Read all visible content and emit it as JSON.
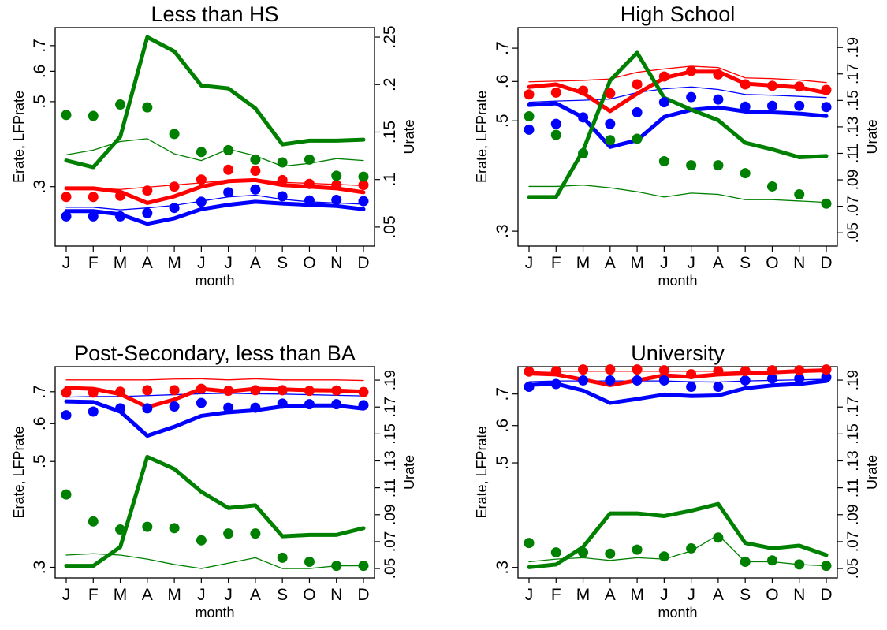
{
  "months": [
    "J",
    "F",
    "M",
    "A",
    "M",
    "J",
    "J",
    "A",
    "S",
    "O",
    "N",
    "D"
  ],
  "colors": {
    "erate": "#0000ff",
    "lfprate": "#ff0000",
    "urate": "#008000"
  },
  "chart_data": [
    {
      "type": "line",
      "title": "Less than HS",
      "xlabel": "month",
      "ylabel_left": "Erate, LFPrate",
      "ylabel_right": "Urate",
      "left_scale": "log",
      "left_ticks": [
        ".3",
        ".5",
        ".6",
        ".7"
      ],
      "left_tick_values": [
        0.3,
        0.5,
        0.6,
        0.7
      ],
      "left_range": [
        0.21,
        0.78
      ],
      "right_ticks": [
        ".05",
        ".1",
        ".15",
        ".2",
        ".25"
      ],
      "right_tick_values": [
        0.05,
        0.1,
        0.15,
        0.2,
        0.25
      ],
      "right_range": [
        0.03,
        0.26
      ],
      "series": [
        {
          "axis": "left",
          "role": "erate",
          "style": "thin",
          "values": [
            0.265,
            0.265,
            0.261,
            0.264,
            0.268,
            0.275,
            0.282,
            0.285,
            0.278,
            0.274,
            0.272,
            0.27
          ]
        },
        {
          "axis": "left",
          "role": "erate",
          "style": "thick",
          "values": [
            0.259,
            0.259,
            0.254,
            0.24,
            0.248,
            0.262,
            0.269,
            0.274,
            0.271,
            0.269,
            0.267,
            0.262
          ]
        },
        {
          "axis": "left",
          "role": "erate",
          "style": "dots",
          "values": [
            0.251,
            0.251,
            0.251,
            0.256,
            0.264,
            0.274,
            0.29,
            0.295,
            0.283,
            0.276,
            0.277,
            0.275
          ]
        },
        {
          "axis": "left",
          "role": "lfprate",
          "style": "thin",
          "values": [
            0.297,
            0.297,
            0.295,
            0.299,
            0.303,
            0.307,
            0.312,
            0.314,
            0.308,
            0.306,
            0.304,
            0.302
          ]
        },
        {
          "axis": "left",
          "role": "lfprate",
          "style": "thick",
          "values": [
            0.297,
            0.297,
            0.291,
            0.272,
            0.283,
            0.3,
            0.31,
            0.312,
            0.303,
            0.3,
            0.297,
            0.29
          ]
        },
        {
          "axis": "left",
          "role": "lfprate",
          "style": "dots",
          "values": [
            0.282,
            0.282,
            0.284,
            0.293,
            0.3,
            0.313,
            0.332,
            0.33,
            0.312,
            0.305,
            0.303,
            0.303
          ]
        },
        {
          "axis": "right",
          "role": "urate",
          "style": "thin",
          "values": [
            0.126,
            0.131,
            0.14,
            0.143,
            0.127,
            0.12,
            0.132,
            0.125,
            0.114,
            0.117,
            0.122,
            0.12
          ]
        },
        {
          "axis": "right",
          "role": "urate",
          "style": "thick",
          "values": [
            0.12,
            0.113,
            0.145,
            0.25,
            0.235,
            0.199,
            0.196,
            0.175,
            0.137,
            0.141,
            0.141,
            0.142
          ]
        },
        {
          "axis": "right",
          "role": "urate",
          "style": "dots",
          "values": [
            0.168,
            0.167,
            0.179,
            0.176,
            0.148,
            0.129,
            0.131,
            0.121,
            0.118,
            0.121,
            0.104,
            0.103
          ]
        }
      ]
    },
    {
      "type": "line",
      "title": "High School",
      "xlabel": "month",
      "ylabel_left": "Erate, LFPrate",
      "ylabel_right": "Urate",
      "left_scale": "log",
      "left_ticks": [
        ".3",
        ".5",
        ".6",
        ".7"
      ],
      "left_tick_values": [
        0.3,
        0.5,
        0.6,
        0.7
      ],
      "left_range": [
        0.28,
        0.77
      ],
      "right_ticks": [
        ".05",
        ".07",
        ".09",
        ".11",
        ".13",
        ".15",
        ".17",
        ".19"
      ],
      "right_tick_values": [
        0.05,
        0.07,
        0.09,
        0.11,
        0.13,
        0.15,
        0.17,
        0.19
      ],
      "right_range": [
        0.04,
        0.205
      ],
      "series": [
        {
          "axis": "left",
          "role": "erate",
          "style": "thin",
          "values": [
            0.545,
            0.548,
            0.55,
            0.553,
            0.57,
            0.58,
            0.585,
            0.578,
            0.565,
            0.563,
            0.56,
            0.557
          ]
        },
        {
          "axis": "left",
          "role": "erate",
          "style": "thick",
          "values": [
            0.538,
            0.542,
            0.508,
            0.443,
            0.457,
            0.509,
            0.526,
            0.532,
            0.522,
            0.52,
            0.517,
            0.511
          ]
        },
        {
          "axis": "left",
          "role": "erate",
          "style": "dots",
          "values": [
            0.48,
            0.493,
            0.508,
            0.493,
            0.52,
            0.545,
            0.558,
            0.552,
            0.534,
            0.536,
            0.536,
            0.533
          ]
        },
        {
          "axis": "left",
          "role": "lfprate",
          "style": "thin",
          "values": [
            0.599,
            0.601,
            0.603,
            0.607,
            0.626,
            0.636,
            0.644,
            0.64,
            0.61,
            0.608,
            0.604,
            0.597
          ]
        },
        {
          "axis": "left",
          "role": "lfprate",
          "style": "thick",
          "values": [
            0.585,
            0.592,
            0.569,
            0.523,
            0.567,
            0.61,
            0.628,
            0.628,
            0.594,
            0.589,
            0.584,
            0.569
          ]
        },
        {
          "axis": "left",
          "role": "lfprate",
          "style": "dots",
          "values": [
            0.565,
            0.57,
            0.575,
            0.568,
            0.592,
            0.614,
            0.63,
            0.62,
            0.592,
            0.588,
            0.586,
            0.577
          ]
        },
        {
          "axis": "right",
          "role": "urate",
          "style": "thin",
          "values": [
            0.085,
            0.085,
            0.086,
            0.084,
            0.081,
            0.077,
            0.08,
            0.079,
            0.075,
            0.075,
            0.074,
            0.073
          ]
        },
        {
          "axis": "right",
          "role": "urate",
          "style": "thick",
          "values": [
            0.077,
            0.077,
            0.112,
            0.165,
            0.186,
            0.152,
            0.143,
            0.135,
            0.118,
            0.113,
            0.107,
            0.108
          ]
        },
        {
          "axis": "right",
          "role": "urate",
          "style": "dots",
          "values": [
            0.138,
            0.124,
            0.11,
            0.12,
            0.121,
            0.104,
            0.101,
            0.101,
            0.095,
            0.085,
            0.079,
            0.072
          ]
        }
      ]
    },
    {
      "type": "line",
      "title": "Post-Secondary, less than BA",
      "xlabel": "month",
      "ylabel_left": "Erate, LFPrate",
      "ylabel_right": "Urate",
      "left_scale": "log",
      "left_ticks": [
        ".3",
        ".5",
        ".6",
        ".7"
      ],
      "left_tick_values": [
        0.3,
        0.5,
        0.6,
        0.7
      ],
      "left_range": [
        0.285,
        0.79
      ],
      "right_ticks": [
        ".05",
        ".07",
        ".09",
        ".11",
        ".13",
        ".15",
        ".17",
        ".19"
      ],
      "right_tick_values": [
        0.05,
        0.07,
        0.09,
        0.11,
        0.13,
        0.15,
        0.17,
        0.19
      ],
      "right_range": [
        0.043,
        0.2
      ],
      "series": [
        {
          "axis": "left",
          "role": "erate",
          "style": "thin",
          "values": [
            0.682,
            0.684,
            0.684,
            0.687,
            0.69,
            0.693,
            0.695,
            0.693,
            0.692,
            0.69,
            0.688,
            0.686
          ]
        },
        {
          "axis": "left",
          "role": "erate",
          "style": "thick",
          "values": [
            0.668,
            0.666,
            0.636,
            0.566,
            0.591,
            0.623,
            0.634,
            0.64,
            0.652,
            0.655,
            0.655,
            0.645
          ]
        },
        {
          "axis": "left",
          "role": "erate",
          "style": "dots",
          "values": [
            0.625,
            0.636,
            0.646,
            0.646,
            0.652,
            0.663,
            0.648,
            0.648,
            0.661,
            0.659,
            0.659,
            0.656
          ]
        },
        {
          "axis": "left",
          "role": "lfprate",
          "style": "thin",
          "values": [
            0.741,
            0.741,
            0.741,
            0.741,
            0.744,
            0.745,
            0.741,
            0.745,
            0.741,
            0.741,
            0.741,
            0.739
          ]
        },
        {
          "axis": "left",
          "role": "lfprate",
          "style": "thick",
          "values": [
            0.713,
            0.71,
            0.692,
            0.65,
            0.674,
            0.71,
            0.701,
            0.71,
            0.708,
            0.705,
            0.704,
            0.7
          ]
        },
        {
          "axis": "left",
          "role": "lfprate",
          "style": "dots",
          "values": [
            0.697,
            0.697,
            0.7,
            0.705,
            0.705,
            0.71,
            0.703,
            0.705,
            0.705,
            0.703,
            0.704,
            0.699
          ]
        },
        {
          "axis": "right",
          "role": "urate",
          "style": "thin",
          "values": [
            0.06,
            0.061,
            0.06,
            0.057,
            0.053,
            0.05,
            0.054,
            0.058,
            0.05,
            0.05,
            0.052,
            0.052
          ]
        },
        {
          "axis": "right",
          "role": "urate",
          "style": "thick",
          "values": [
            0.052,
            0.052,
            0.066,
            0.133,
            0.124,
            0.107,
            0.095,
            0.097,
            0.074,
            0.075,
            0.075,
            0.08
          ]
        },
        {
          "axis": "right",
          "role": "urate",
          "style": "dots",
          "values": [
            0.105,
            0.085,
            0.079,
            0.081,
            0.08,
            0.071,
            0.076,
            0.076,
            0.058,
            0.055,
            0.052,
            0.052
          ]
        }
      ]
    },
    {
      "type": "line",
      "title": "University",
      "xlabel": "month",
      "ylabel_left": "Erate, LFPrate",
      "ylabel_right": "Urate",
      "left_scale": "log",
      "left_ticks": [
        ".3",
        ".5",
        ".6",
        ".7"
      ],
      "left_tick_values": [
        0.3,
        0.5,
        0.6,
        0.7
      ],
      "left_range": [
        0.285,
        0.8
      ],
      "right_ticks": [
        ".05",
        ".07",
        ".09",
        ".11",
        ".13",
        ".15",
        ".17",
        ".19"
      ],
      "right_tick_values": [
        0.05,
        0.07,
        0.09,
        0.11,
        0.13,
        0.15,
        0.17,
        0.19
      ],
      "right_range": [
        0.043,
        0.2
      ],
      "series": [
        {
          "axis": "left",
          "role": "erate",
          "style": "thin",
          "values": [
            0.743,
            0.746,
            0.746,
            0.746,
            0.746,
            0.746,
            0.743,
            0.742,
            0.746,
            0.748,
            0.75,
            0.752
          ]
        },
        {
          "axis": "left",
          "role": "erate",
          "style": "thick",
          "values": [
            0.732,
            0.736,
            0.712,
            0.67,
            0.683,
            0.698,
            0.693,
            0.695,
            0.72,
            0.73,
            0.735,
            0.746
          ]
        },
        {
          "axis": "left",
          "role": "erate",
          "style": "dots",
          "values": [
            0.725,
            0.735,
            0.748,
            0.748,
            0.748,
            0.748,
            0.725,
            0.725,
            0.748,
            0.755,
            0.755,
            0.76
          ]
        },
        {
          "axis": "left",
          "role": "lfprate",
          "style": "thin",
          "values": [
            0.782,
            0.782,
            0.782,
            0.782,
            0.782,
            0.782,
            0.782,
            0.782,
            0.782,
            0.782,
            0.782,
            0.782
          ]
        },
        {
          "axis": "left",
          "role": "lfprate",
          "style": "thick",
          "values": [
            0.774,
            0.77,
            0.751,
            0.731,
            0.748,
            0.767,
            0.761,
            0.77,
            0.774,
            0.778,
            0.783,
            0.786
          ]
        },
        {
          "axis": "left",
          "role": "lfprate",
          "style": "dots",
          "values": [
            0.781,
            0.783,
            0.789,
            0.789,
            0.789,
            0.786,
            0.771,
            0.783,
            0.783,
            0.786,
            0.786,
            0.789
          ]
        },
        {
          "axis": "right",
          "role": "urate",
          "style": "thin",
          "values": [
            0.055,
            0.057,
            0.058,
            0.056,
            0.058,
            0.057,
            0.063,
            0.075,
            0.055,
            0.055,
            0.053,
            0.052
          ]
        },
        {
          "axis": "right",
          "role": "urate",
          "style": "thick",
          "values": [
            0.051,
            0.053,
            0.066,
            0.091,
            0.091,
            0.089,
            0.093,
            0.098,
            0.069,
            0.065,
            0.067,
            0.06
          ]
        },
        {
          "axis": "right",
          "role": "urate",
          "style": "dots",
          "values": [
            0.069,
            0.062,
            0.062,
            0.061,
            0.064,
            0.059,
            0.065,
            0.073,
            0.055,
            0.056,
            0.053,
            0.052
          ]
        }
      ]
    }
  ]
}
